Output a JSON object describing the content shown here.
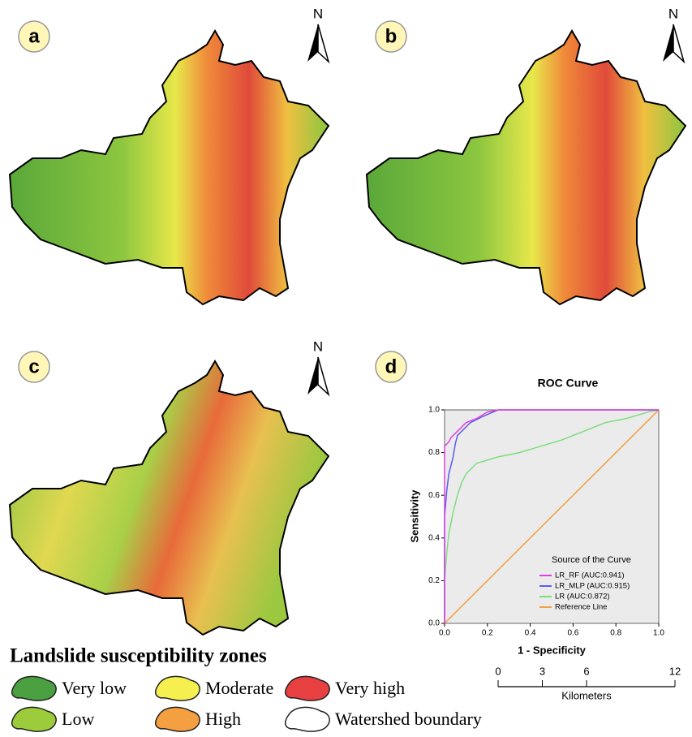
{
  "panels": {
    "labels": [
      "a",
      "b",
      "c",
      "d"
    ],
    "north": [
      "N",
      "N",
      "N"
    ]
  },
  "legend": {
    "title": "Landslide susceptibility zones",
    "items": [
      {
        "label": "Very low",
        "color": "#4aa040"
      },
      {
        "label": "Low",
        "color": "#9ccc3c"
      },
      {
        "label": "Moderate",
        "color": "#f5f050"
      },
      {
        "label": "High",
        "color": "#f5a040"
      },
      {
        "label": "Very high",
        "color": "#e84040"
      },
      {
        "label": "Watershed boundary",
        "color": "#ffffff"
      }
    ]
  },
  "scale_bar": {
    "ticks": [
      0,
      3,
      6,
      12
    ],
    "unit": "Kilometers"
  },
  "chart_data": {
    "type": "line",
    "title": "ROC Curve",
    "x_label": "1 - Specificity",
    "y_label": "Sensitivity",
    "legend_title": "Source of the Curve",
    "xlim": [
      0,
      1
    ],
    "ylim": [
      0,
      1
    ],
    "xticks": [
      {
        "value": 0,
        "label": "0.0"
      },
      {
        "value": 0.2,
        "label": "0.2"
      },
      {
        "value": 0.4,
        "label": "0.4"
      },
      {
        "value": 0.6,
        "label": "0.6"
      },
      {
        "value": 0.8,
        "label": "0.8"
      },
      {
        "value": 1,
        "label": "1.0"
      }
    ],
    "yticks": [
      {
        "value": 0,
        "label": "0.0"
      },
      {
        "value": 0.2,
        "label": "0.2"
      },
      {
        "value": 0.4,
        "label": "0.4"
      },
      {
        "value": 0.6,
        "label": "0.6"
      },
      {
        "value": 0.8,
        "label": "0.8"
      },
      {
        "value": 1,
        "label": "1.0"
      }
    ],
    "series": [
      {
        "name": "LR_RF (AUC:0.941)",
        "color": "#e040e0",
        "x": [
          0,
          0,
          0.01,
          0.02,
          0.03,
          0.05,
          0.08,
          0.1,
          0.15,
          0.2,
          0.25,
          1
        ],
        "values": [
          0,
          0.83,
          0.84,
          0.85,
          0.87,
          0.89,
          0.92,
          0.94,
          0.96,
          0.99,
          1,
          1
        ]
      },
      {
        "name": "LR_MLP (AUC:0.915)",
        "color": "#5b5bef",
        "x": [
          0,
          0,
          0.01,
          0.02,
          0.04,
          0.05,
          0.06,
          0.08,
          0.12,
          0.18,
          0.25,
          1
        ],
        "values": [
          0,
          0.5,
          0.62,
          0.7,
          0.78,
          0.84,
          0.88,
          0.9,
          0.94,
          0.97,
          1,
          1
        ]
      },
      {
        "name": "LR (AUC:0.872)",
        "color": "#7fdc7f",
        "x": [
          0,
          0,
          0.01,
          0.02,
          0.04,
          0.06,
          0.08,
          0.1,
          0.15,
          0.25,
          0.35,
          0.45,
          0.55,
          0.65,
          0.75,
          0.85,
          0.95,
          1
        ],
        "values": [
          0,
          0.2,
          0.33,
          0.42,
          0.52,
          0.6,
          0.66,
          0.7,
          0.75,
          0.78,
          0.8,
          0.83,
          0.86,
          0.9,
          0.94,
          0.96,
          0.99,
          1
        ]
      },
      {
        "name": "Reference Line",
        "color": "#f0a040",
        "x": [
          0,
          1
        ],
        "values": [
          0,
          1
        ]
      }
    ]
  }
}
